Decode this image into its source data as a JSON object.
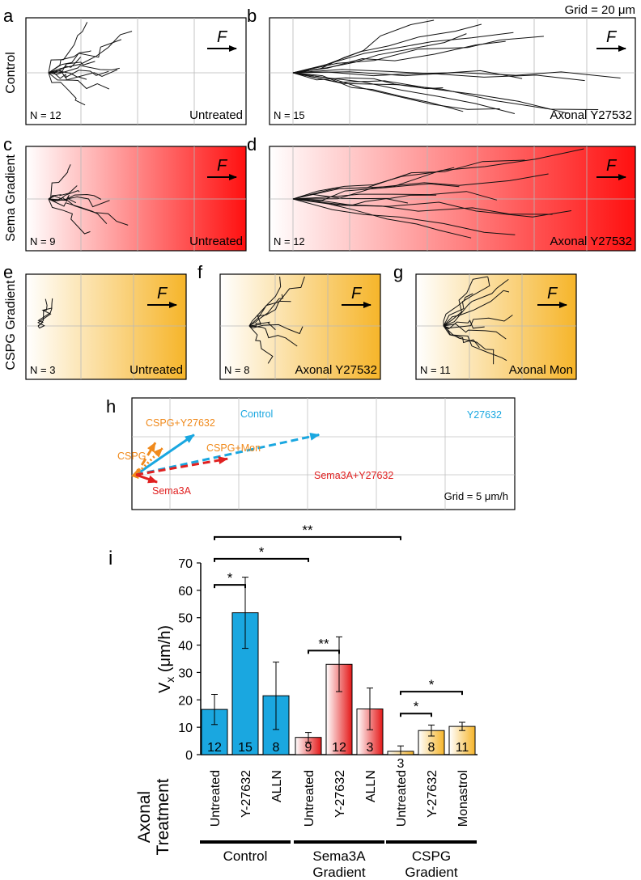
{
  "figure": {
    "grid_scale_label": "Grid = 20 μm",
    "row_labels": {
      "control": "Control",
      "sema": "Sema Gradient",
      "cspg": "CSPG Gradient"
    },
    "force_label": "F"
  },
  "trajectory_panels": [
    {
      "letter": "a",
      "n_label": "N = 12",
      "treatment": "Untreated",
      "gradient": "none",
      "n": 12
    },
    {
      "letter": "b",
      "n_label": "N = 15",
      "treatment": "Axonal Y27532",
      "gradient": "none",
      "n": 15
    },
    {
      "letter": "c",
      "n_label": "N = 9",
      "treatment": "Untreated",
      "gradient": "sema",
      "n": 9
    },
    {
      "letter": "d",
      "n_label": "N = 12",
      "treatment": "Axonal Y27532",
      "gradient": "sema",
      "n": 12
    },
    {
      "letter": "e",
      "n_label": "N = 3",
      "treatment": "Untreated",
      "gradient": "cspg",
      "n": 3
    },
    {
      "letter": "f",
      "n_label": "N = 8",
      "treatment": "Axonal Y27532",
      "gradient": "cspg",
      "n": 8
    },
    {
      "letter": "g",
      "n_label": "N = 11",
      "treatment": "Axonal Mon",
      "gradient": "cspg",
      "n": 11
    }
  ],
  "vectors_panel": {
    "letter": "h",
    "grid_label": "Grid = 5 μm/h",
    "unit": "μm/h",
    "vectors": [
      {
        "label": "Control",
        "vx": 16.5,
        "vy": 6.5,
        "color": "#1aa7e0",
        "style": "solid"
      },
      {
        "label": "Y27632",
        "vx": 52,
        "vy": 6.5,
        "color": "#1aa7e0",
        "style": "dashed"
      },
      {
        "label": "CSPG+Y27632",
        "vx": 5.5,
        "vy": 5.2,
        "color": "#f08a1c",
        "style": "dashed"
      },
      {
        "label": "CSPG+Mon",
        "vx": 7.5,
        "vy": 4.3,
        "color": "#f08a1c",
        "style": "dotted"
      },
      {
        "label": "CSPG",
        "vx": 0.6,
        "vy": 0.9,
        "color": "#f08a1c",
        "style": "solid"
      },
      {
        "label": "Sema3A+Y27632",
        "vx": 26,
        "vy": 2.6,
        "color": "#e02020",
        "style": "dashed"
      },
      {
        "label": "Sema3A",
        "vx": 6.0,
        "vy": -1.2,
        "color": "#e02020",
        "style": "solid"
      }
    ]
  },
  "chart_data": {
    "type": "bar",
    "panel_letter": "i",
    "ylabel_main": "V",
    "ylabel_sub": "x",
    "ylabel_rest": " (μm/h)",
    "ylim": [
      0,
      70
    ],
    "yticks": [
      0,
      10,
      20,
      30,
      40,
      50,
      60,
      70
    ],
    "xaxis_title_line1": "Axonal",
    "xaxis_title_line2": "Treatment",
    "categories": [
      "Untreated",
      "Y-27632",
      "ALLN",
      "Untreated",
      "Y-27632",
      "ALLN",
      "Untreated",
      "Y-27632",
      "Monastrol"
    ],
    "values": [
      16.5,
      51.8,
      21.5,
      6.3,
      33,
      16.7,
      1.2,
      8.8,
      10.3
    ],
    "errors": [
      5.5,
      13,
      12.3,
      1.8,
      10,
      7.6,
      2.0,
      2.0,
      1.5
    ],
    "n_labels": [
      "12",
      "15",
      "8",
      "9",
      "12",
      "3",
      "3",
      "8",
      "11"
    ],
    "groups": [
      {
        "name_line1": "Control",
        "name_line2": "",
        "bars": [
          0,
          1,
          2
        ],
        "fill": "blue"
      },
      {
        "name_line1": "Sema3A",
        "name_line2": "Gradient",
        "bars": [
          3,
          4,
          5
        ],
        "fill": "red"
      },
      {
        "name_line1": "CSPG",
        "name_line2": "Gradient",
        "bars": [
          6,
          7,
          8
        ],
        "fill": "orange"
      }
    ],
    "significance": [
      {
        "from": 0,
        "to": 1,
        "label": "*",
        "y": 62
      },
      {
        "from": 0,
        "to": 3,
        "label": "*",
        "y": 71.5
      },
      {
        "from": 0,
        "to": 6,
        "label": "**",
        "y": 79.5
      },
      {
        "from": 3,
        "to": 4,
        "label": "**",
        "y": 38
      },
      {
        "from": 6,
        "to": 7,
        "label": "*",
        "y": 15
      },
      {
        "from": 6,
        "to": 8,
        "label": "*",
        "y": 23
      }
    ],
    "colors": {
      "blue": "#1aa7e0",
      "red": "#e02020",
      "orange": "#f7b731"
    }
  }
}
